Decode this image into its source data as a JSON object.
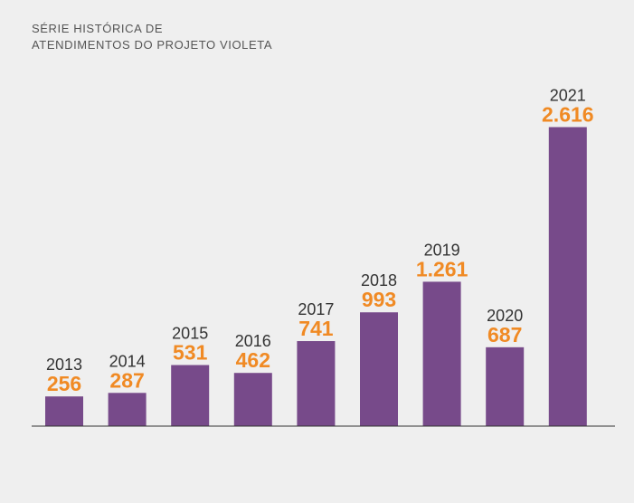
{
  "chart_data": {
    "type": "bar",
    "title": [
      "SÉRIE HISTÓRICA DE",
      "ATENDIMENTOS DO PROJETO VIOLETA"
    ],
    "categories": [
      "2013",
      "2014",
      "2015",
      "2016",
      "2017",
      "2018",
      "2019",
      "2020",
      "2021"
    ],
    "values": [
      256,
      287,
      531,
      462,
      741,
      993,
      1261,
      687,
      2616
    ],
    "value_labels": [
      "256",
      "287",
      "531",
      "462",
      "741",
      "993",
      "1.261",
      "687",
      "2.616"
    ],
    "color": "#774a8a",
    "label_color": "#f08a24"
  }
}
